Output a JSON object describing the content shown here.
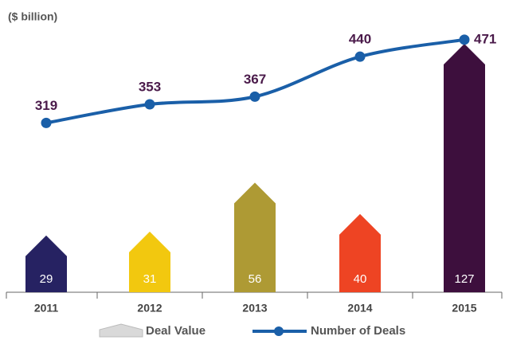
{
  "chart_data": {
    "type": "bar-line",
    "y_axis_label": "($ billion)",
    "categories": [
      "2011",
      "2012",
      "2013",
      "2014",
      "2015"
    ],
    "series": [
      {
        "name": "Deal Value",
        "type": "bar",
        "color": "#d9d9d9",
        "colors": [
          "#262262",
          "#f2c80f",
          "#ae9a34",
          "#ee4423",
          "#3d0f3d"
        ],
        "values": [
          29,
          31,
          56,
          40,
          127
        ]
      },
      {
        "name": "Number of Deals",
        "type": "line",
        "axis": "y2",
        "color": "#1a5fa8",
        "values": [
          319,
          353,
          367,
          440,
          471
        ]
      }
    ],
    "ylim": [
      0,
      140
    ],
    "y2lim": [
      10,
      510
    ],
    "legend": "bottom"
  }
}
